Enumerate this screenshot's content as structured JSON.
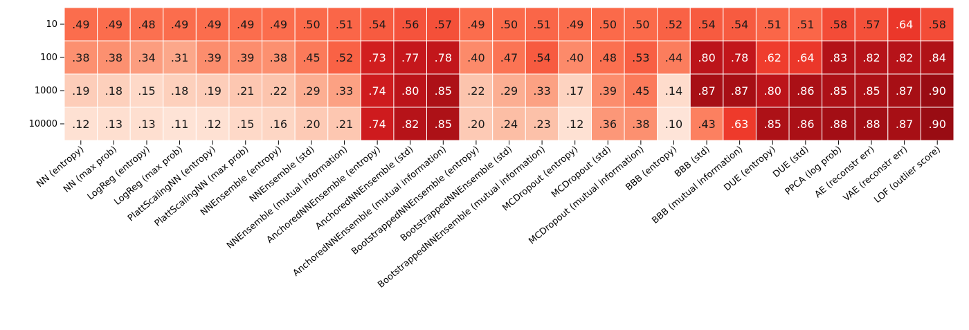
{
  "chart_data": {
    "type": "heatmap",
    "title": "",
    "xlabel": "",
    "ylabel": "",
    "colormap": "Reds",
    "value_range": [
      0.0,
      1.0
    ],
    "grid_color": "#ffffff",
    "rows": [
      "10",
      "100",
      "1000",
      "10000"
    ],
    "columns": [
      "NN (entropy)",
      "NN (max prob)",
      "LogReg (entropy)",
      "LogReg (max prob)",
      "PlattScalingNN (entropy)",
      "PlattScalingNN (max prob)",
      "NNEnsemble (entropy)",
      "NNEnsemble (std)",
      "NNEnsemble (mutual information)",
      "AnchoredNNEnsemble (entropy)",
      "AnchoredNNEnsemble (std)",
      "AnchoredNNEnsemble (mutual information)",
      "BootstrappedNNEnsemble (entropy)",
      "BootstrappedNNEnsemble (std)",
      "BootstrappedNNEnsemble (mutual information)",
      "MCDropout (entropy)",
      "MCDropout (std)",
      "MCDropout (mutual information)",
      "BBB (entropy)",
      "BBB (std)",
      "BBB (mutual information)",
      "DUE (entropy)",
      "DUE (std)",
      "PPCA (log prob)",
      "AE (reconstr err)",
      "VAE (reconstr err)",
      "LOF (outlier score)"
    ],
    "values": [
      [
        0.49,
        0.49,
        0.48,
        0.49,
        0.49,
        0.49,
        0.49,
        0.5,
        0.51,
        0.54,
        0.56,
        0.57,
        0.49,
        0.5,
        0.51,
        0.49,
        0.5,
        0.5,
        0.52,
        0.54,
        0.54,
        0.51,
        0.51,
        0.58,
        0.57,
        0.64,
        0.58
      ],
      [
        0.38,
        0.38,
        0.34,
        0.31,
        0.39,
        0.39,
        0.38,
        0.45,
        0.52,
        0.73,
        0.77,
        0.78,
        0.4,
        0.47,
        0.54,
        0.4,
        0.48,
        0.53,
        0.44,
        0.8,
        0.78,
        0.62,
        0.64,
        0.83,
        0.82,
        0.82,
        0.84
      ],
      [
        0.19,
        0.18,
        0.15,
        0.18,
        0.19,
        0.21,
        0.22,
        0.29,
        0.33,
        0.74,
        0.8,
        0.85,
        0.22,
        0.29,
        0.33,
        0.17,
        0.39,
        0.45,
        0.14,
        0.87,
        0.87,
        0.8,
        0.86,
        0.85,
        0.85,
        0.87,
        0.9
      ],
      [
        0.12,
        0.13,
        0.13,
        0.11,
        0.12,
        0.15,
        0.16,
        0.2,
        0.21,
        0.74,
        0.82,
        0.85,
        0.2,
        0.24,
        0.23,
        0.12,
        0.36,
        0.38,
        0.1,
        0.43,
        0.63,
        0.85,
        0.86,
        0.88,
        0.88,
        0.87,
        0.9
      ]
    ],
    "cell_labels": [
      [
        ".49",
        ".49",
        ".48",
        ".49",
        ".49",
        ".49",
        ".49",
        ".50",
        ".51",
        ".54",
        ".56",
        ".57",
        ".49",
        ".50",
        ".51",
        ".49",
        ".50",
        ".50",
        ".52",
        ".54",
        ".54",
        ".51",
        ".51",
        ".58",
        ".57",
        ".64",
        ".58"
      ],
      [
        ".38",
        ".38",
        ".34",
        ".31",
        ".39",
        ".39",
        ".38",
        ".45",
        ".52",
        ".73",
        ".77",
        ".78",
        ".40",
        ".47",
        ".54",
        ".40",
        ".48",
        ".53",
        ".44",
        ".80",
        ".78",
        ".62",
        ".64",
        ".83",
        ".82",
        ".82",
        ".84"
      ],
      [
        ".19",
        ".18",
        ".15",
        ".18",
        ".19",
        ".21",
        ".22",
        ".29",
        ".33",
        ".74",
        ".80",
        ".85",
        ".22",
        ".29",
        ".33",
        ".17",
        ".39",
        ".45",
        ".14",
        ".87",
        ".87",
        ".80",
        ".86",
        ".85",
        ".85",
        ".87",
        ".90"
      ],
      [
        ".12",
        ".13",
        ".13",
        ".11",
        ".12",
        ".15",
        ".16",
        ".20",
        ".21",
        ".74",
        ".82",
        ".85",
        ".20",
        ".24",
        ".23",
        ".12",
        ".36",
        ".38",
        ".10",
        ".43",
        ".63",
        ".85",
        ".86",
        ".88",
        ".88",
        ".87",
        ".90"
      ]
    ]
  }
}
